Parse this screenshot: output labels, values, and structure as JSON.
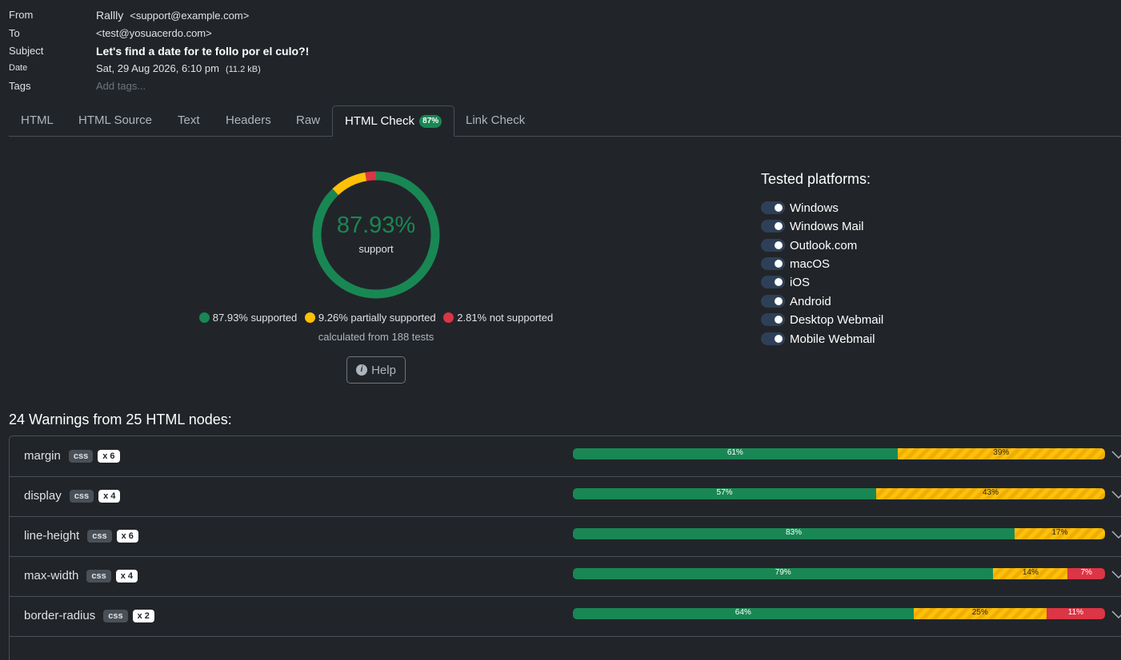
{
  "header": {
    "from_label": "From",
    "from_name": "Rallly",
    "from_addr": "<support@example.com>",
    "to_label": "To",
    "to_addr": "<test@yosuacerdo.com>",
    "subject_label": "Subject",
    "subject": "Let's find a date for te follo por el culo?!",
    "date_label": "Date",
    "date": "Sat, 29 Aug 2026, 6:10 pm",
    "size": "(11.2 kB)",
    "tags_label": "Tags",
    "tags_placeholder": "Add tags..."
  },
  "tabs": [
    "HTML",
    "HTML Source",
    "Text",
    "Headers",
    "Raw",
    "HTML Check",
    "Link Check"
  ],
  "active_tab_badge": "87%",
  "colors": {
    "supported": "#198754",
    "partial": "#ffc107",
    "unsupported": "#dc3545"
  },
  "summary": {
    "percent": "87.93%",
    "label": "support",
    "supported_fraction": 0.8793,
    "partial_fraction": 0.0926,
    "unsupported_fraction": 0.0281,
    "legend_supported": "87.93% supported",
    "legend_partial": "9.26% partially supported",
    "legend_unsupported": "2.81% not supported",
    "calculated": "calculated from 188 tests",
    "help": "Help"
  },
  "platforms": {
    "title": "Tested platforms:",
    "items": [
      "Windows",
      "Windows Mail",
      "Outlook.com",
      "macOS",
      "iOS",
      "Android",
      "Desktop Webmail",
      "Mobile Webmail"
    ]
  },
  "warnings": {
    "title": "24 Warnings from 25 HTML nodes:",
    "rows": [
      {
        "name": "margin",
        "type": "css",
        "count": "x 6",
        "g": 61,
        "y": 39,
        "r": 0,
        "g_label": "61%",
        "y_label": "39%",
        "r_label": ""
      },
      {
        "name": "display",
        "type": "css",
        "count": "x 4",
        "g": 57,
        "y": 43,
        "r": 0,
        "g_label": "57%",
        "y_label": "43%",
        "r_label": ""
      },
      {
        "name": "line-height",
        "type": "css",
        "count": "x 6",
        "g": 83,
        "y": 17,
        "r": 0,
        "g_label": "83%",
        "y_label": "17%",
        "r_label": ""
      },
      {
        "name": "max-width",
        "type": "css",
        "count": "x 4",
        "g": 79,
        "y": 14,
        "r": 7,
        "g_label": "79%",
        "y_label": "14%",
        "r_label": "7%"
      },
      {
        "name": "border-radius",
        "type": "css",
        "count": "x 2",
        "g": 64,
        "y": 25,
        "r": 11,
        "g_label": "64%",
        "y_label": "25%",
        "r_label": "11%"
      }
    ]
  }
}
